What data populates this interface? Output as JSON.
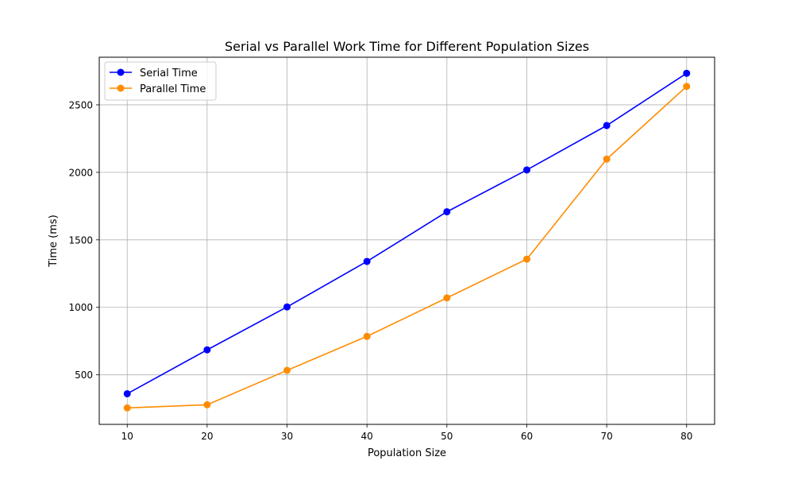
{
  "chart_data": {
    "type": "line",
    "title": "Serial vs Parallel Work Time for Different Population Sizes",
    "xlabel": "Population Size",
    "ylabel": "Time (ms)",
    "x": [
      10,
      20,
      30,
      40,
      50,
      60,
      70,
      80
    ],
    "x_ticks": [
      10,
      20,
      30,
      40,
      50,
      60,
      70,
      80
    ],
    "y_ticks": [
      500,
      1000,
      1500,
      2000,
      2500
    ],
    "xlim": [
      6.5,
      83.5
    ],
    "ylim": [
      133,
      2853
    ],
    "grid": true,
    "legend_position": "upper-left",
    "series": [
      {
        "name": "Serial Time",
        "color": "#0000ff",
        "values": [
          360,
          685,
          1003,
          1340,
          1708,
          2018,
          2347,
          2734
        ]
      },
      {
        "name": "Parallel Time",
        "color": "#ff8c00",
        "values": [
          255,
          278,
          533,
          785,
          1070,
          1357,
          2098,
          2637
        ]
      }
    ]
  }
}
